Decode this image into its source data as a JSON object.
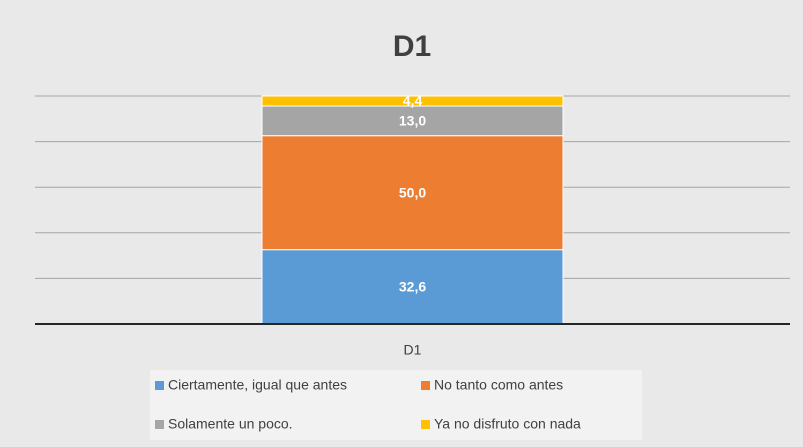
{
  "chart_data": {
    "type": "stacked_bar",
    "title": "D1",
    "categories": [
      "D1"
    ],
    "series": [
      {
        "name": "Ciertamente, igual que antes",
        "color": "#5b9bd5",
        "values": [
          32.6
        ],
        "value_labels": [
          "32,6"
        ]
      },
      {
        "name": "No tanto como antes",
        "color": "#ed7d31",
        "values": [
          50.0
        ],
        "value_labels": [
          "50,0"
        ]
      },
      {
        "name": "Solamente un poco.",
        "color": "#a5a5a5",
        "values": [
          13.0
        ],
        "value_labels": [
          "13,0"
        ]
      },
      {
        "name": "Ya no disfruto con nada",
        "color": "#ffc000",
        "values": [
          4.4
        ],
        "value_labels": [
          "4,4"
        ]
      }
    ],
    "ylim": [
      0,
      100
    ],
    "yticks": [
      0,
      20,
      40,
      60,
      80,
      100
    ],
    "grid": true,
    "legend": "bottom"
  }
}
